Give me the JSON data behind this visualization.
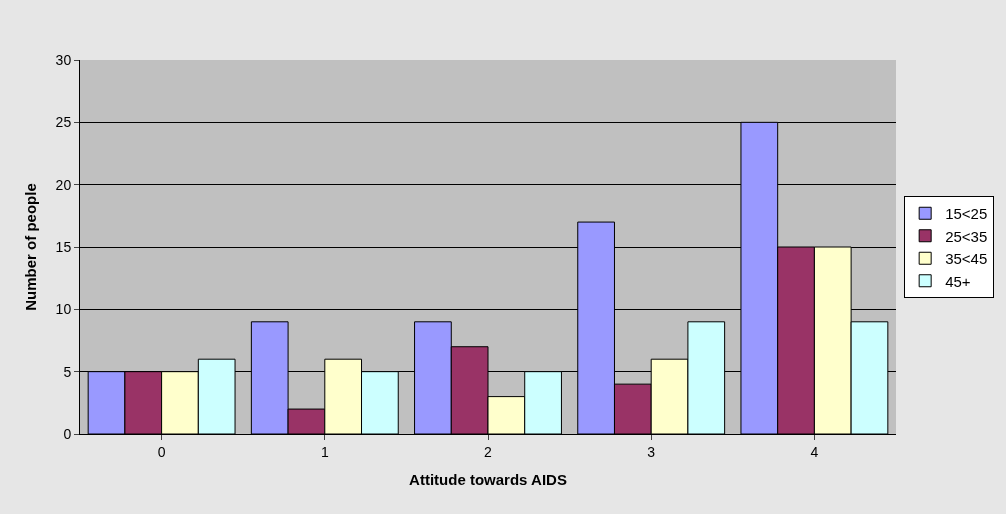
{
  "chart_data": {
    "type": "bar",
    "xlabel": "Attitude towards AIDS",
    "ylabel": "Number of people",
    "categories": [
      "0",
      "1",
      "2",
      "3",
      "4"
    ],
    "series": [
      {
        "name": "15<25",
        "color": "#9999ff",
        "values": [
          5,
          9,
          9,
          17,
          25
        ]
      },
      {
        "name": "25<35",
        "color": "#993366",
        "values": [
          5,
          2,
          7,
          4,
          15
        ]
      },
      {
        "name": "35<45",
        "color": "#ffffcc",
        "values": [
          5,
          6,
          3,
          6,
          15
        ]
      },
      {
        "name": "45+",
        "color": "#ccffff",
        "values": [
          6,
          5,
          5,
          9,
          9
        ]
      }
    ],
    "ylim": [
      0,
      30
    ],
    "yticks": [
      0,
      5,
      10,
      15,
      20,
      25,
      30
    ],
    "grid": "y",
    "legend": "right"
  }
}
